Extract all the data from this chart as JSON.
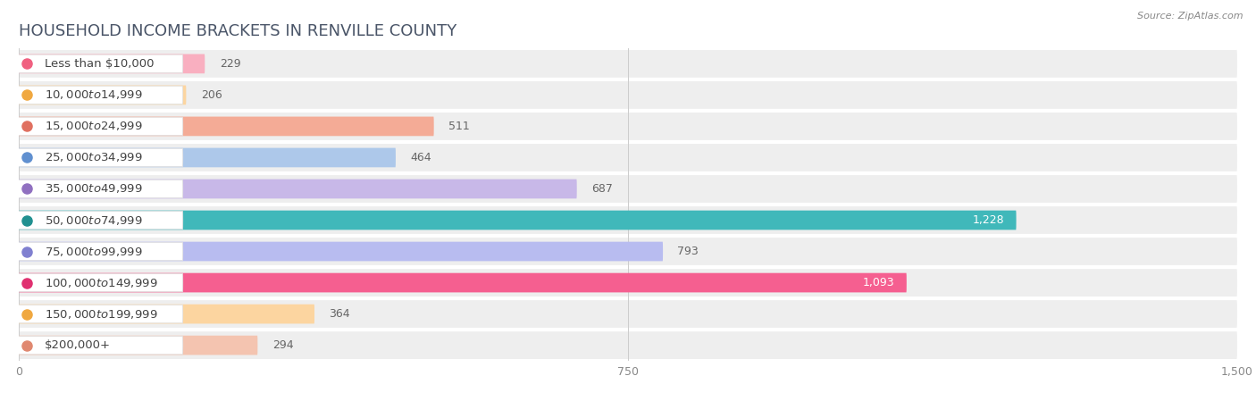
{
  "title": "HOUSEHOLD INCOME BRACKETS IN RENVILLE COUNTY",
  "source": "Source: ZipAtlas.com",
  "categories": [
    "Less than $10,000",
    "$10,000 to $14,999",
    "$15,000 to $24,999",
    "$25,000 to $34,999",
    "$35,000 to $49,999",
    "$50,000 to $74,999",
    "$75,000 to $99,999",
    "$100,000 to $149,999",
    "$150,000 to $199,999",
    "$200,000+"
  ],
  "values": [
    229,
    206,
    511,
    464,
    687,
    1228,
    793,
    1093,
    364,
    294
  ],
  "bar_colors": [
    "#f9afc0",
    "#fcd5a0",
    "#f4ab96",
    "#adc8ea",
    "#c8b8e8",
    "#40b8ba",
    "#b8bcf0",
    "#f55f90",
    "#fcd5a0",
    "#f4c4b0"
  ],
  "dot_colors": [
    "#f06080",
    "#f0a840",
    "#e07060",
    "#6090d0",
    "#9070c0",
    "#209090",
    "#8080d0",
    "#e03070",
    "#f0a840",
    "#e08870"
  ],
  "xlim": [
    0,
    1500
  ],
  "xticks": [
    0,
    750,
    1500
  ],
  "background_color": "#ffffff",
  "row_bg_color": "#eeeeee",
  "title_color": "#4a5568",
  "title_fontsize": 13,
  "label_fontsize": 9.5,
  "value_fontsize": 9
}
